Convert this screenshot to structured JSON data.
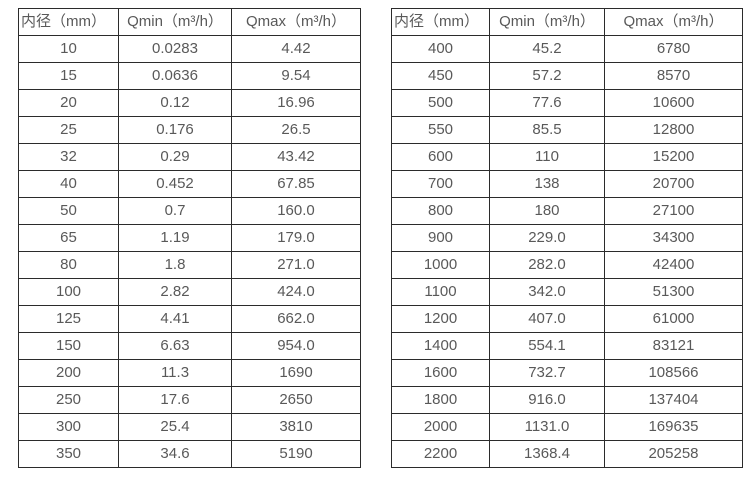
{
  "colors": {
    "text": "#595959",
    "border": "#2b2b2b",
    "background": "#ffffff"
  },
  "tables": [
    {
      "name": "flow-spec-table-small-diameters",
      "headers": [
        "内径（mm）",
        "Qmin（m³/h）",
        "Qmax（m³/h）"
      ],
      "rows": [
        [
          "10",
          "0.0283",
          "4.42"
        ],
        [
          "15",
          "0.0636",
          "9.54"
        ],
        [
          "20",
          "0.12",
          "16.96"
        ],
        [
          "25",
          "0.176",
          "26.5"
        ],
        [
          "32",
          "0.29",
          "43.42"
        ],
        [
          "40",
          "0.452",
          "67.85"
        ],
        [
          "50",
          "0.7",
          "160.0"
        ],
        [
          "65",
          "1.19",
          "179.0"
        ],
        [
          "80",
          "1.8",
          "271.0"
        ],
        [
          "100",
          "2.82",
          "424.0"
        ],
        [
          "125",
          "4.41",
          "662.0"
        ],
        [
          "150",
          "6.63",
          "954.0"
        ],
        [
          "200",
          "11.3",
          "1690"
        ],
        [
          "250",
          "17.6",
          "2650"
        ],
        [
          "300",
          "25.4",
          "3810"
        ],
        [
          "350",
          "34.6",
          "5190"
        ]
      ]
    },
    {
      "name": "flow-spec-table-large-diameters",
      "headers": [
        "内径（mm）",
        "Qmin（m³/h）",
        "Qmax（m³/h）"
      ],
      "rows": [
        [
          "400",
          "45.2",
          "6780"
        ],
        [
          "450",
          "57.2",
          "8570"
        ],
        [
          "500",
          "77.6",
          "10600"
        ],
        [
          "550",
          "85.5",
          "12800"
        ],
        [
          "600",
          "110",
          "15200"
        ],
        [
          "700",
          "138",
          "20700"
        ],
        [
          "800",
          "180",
          "27100"
        ],
        [
          "900",
          "229.0",
          "34300"
        ],
        [
          "1000",
          "282.0",
          "42400"
        ],
        [
          "1100",
          "342.0",
          "51300"
        ],
        [
          "1200",
          "407.0",
          "61000"
        ],
        [
          "1400",
          "554.1",
          "83121"
        ],
        [
          "1600",
          "732.7",
          "108566"
        ],
        [
          "1800",
          "916.0",
          "137404"
        ],
        [
          "2000",
          "1131.0",
          "169635"
        ],
        [
          "2200",
          "1368.4",
          "205258"
        ]
      ]
    }
  ]
}
